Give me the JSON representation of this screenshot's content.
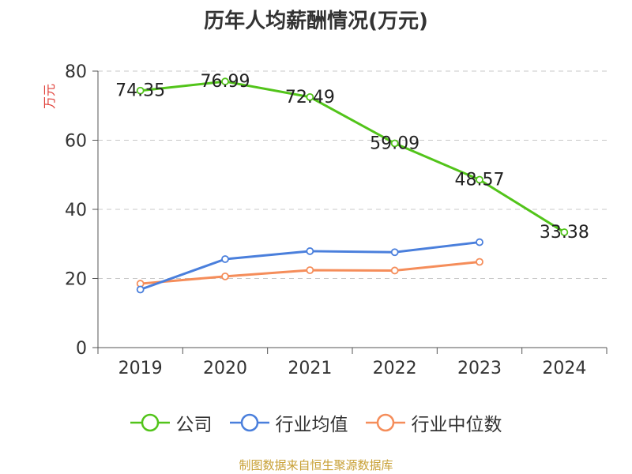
{
  "chart_data": {
    "type": "line",
    "title": "历年人均薪酬情况(万元)",
    "ylabel": "万元",
    "xlabel": "",
    "categories": [
      "2019",
      "2020",
      "2021",
      "2022",
      "2023",
      "2024"
    ],
    "ylim": [
      0,
      80
    ],
    "yticks": [
      0,
      20,
      40,
      60,
      80
    ],
    "grid": true,
    "legend_position": "bottom",
    "series": [
      {
        "name": "公司",
        "color": "#52c41a",
        "values": [
          74.35,
          76.99,
          72.49,
          59.09,
          48.57,
          33.38
        ],
        "labels": [
          "74.35",
          "76.99",
          "72.49",
          "59.09",
          "48.57",
          "33.38"
        ]
      },
      {
        "name": "行业均值",
        "color": "#4a7fdc",
        "values": [
          16.8,
          25.6,
          27.9,
          27.6,
          30.5,
          null
        ],
        "labels": []
      },
      {
        "name": "行业中位数",
        "color": "#f58d5a",
        "values": [
          18.5,
          20.6,
          22.4,
          22.3,
          24.8,
          null
        ],
        "labels": []
      }
    ]
  },
  "source_note": "制图数据来自恒生聚源数据库"
}
